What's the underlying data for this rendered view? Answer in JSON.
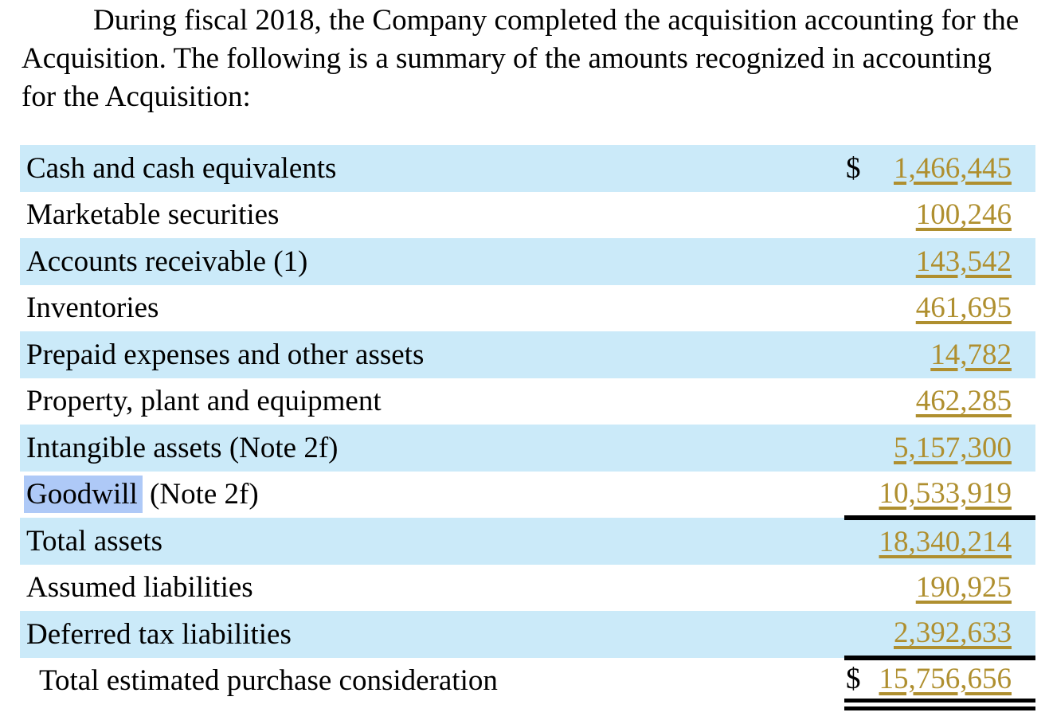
{
  "intro_paragraph": "During fiscal 2018, the Company completed the acquisition accounting for the Acquisition. The following is a summary of the amounts recognized in accounting for the Acquisition:",
  "search": {
    "highlighted_term": "Goodwill"
  },
  "colors": {
    "row_stripe": "#CBEAF9",
    "value_link_gold": "#AF8F2F",
    "search_highlight": "#AEC9F7"
  },
  "table": {
    "rows": [
      {
        "label": "Cash and cash equivalents",
        "currency": "$",
        "value": "1,466,445"
      },
      {
        "label": "Marketable securities",
        "value": "100,246"
      },
      {
        "label": "Accounts receivable (1)",
        "value": "143,542"
      },
      {
        "label": "Inventories",
        "value": "461,695"
      },
      {
        "label": "Prepaid expenses and other assets",
        "value": "14,782"
      },
      {
        "label": "Property, plant and equipment",
        "value": "462,285"
      },
      {
        "label": "Intangible assets (Note 2f)",
        "value": "5,157,300"
      },
      {
        "label": "Goodwill (Note 2f)",
        "highlight": "Goodwill",
        "value": "10,533,919"
      },
      {
        "label": "Total assets",
        "value": "18,340,214"
      },
      {
        "label": "Assumed liabilities",
        "value": "190,925"
      },
      {
        "label": "Deferred tax liabilities",
        "value": "2,392,633"
      },
      {
        "label": "Total estimated purchase consideration",
        "currency": "$",
        "value": "15,756,656"
      }
    ]
  }
}
